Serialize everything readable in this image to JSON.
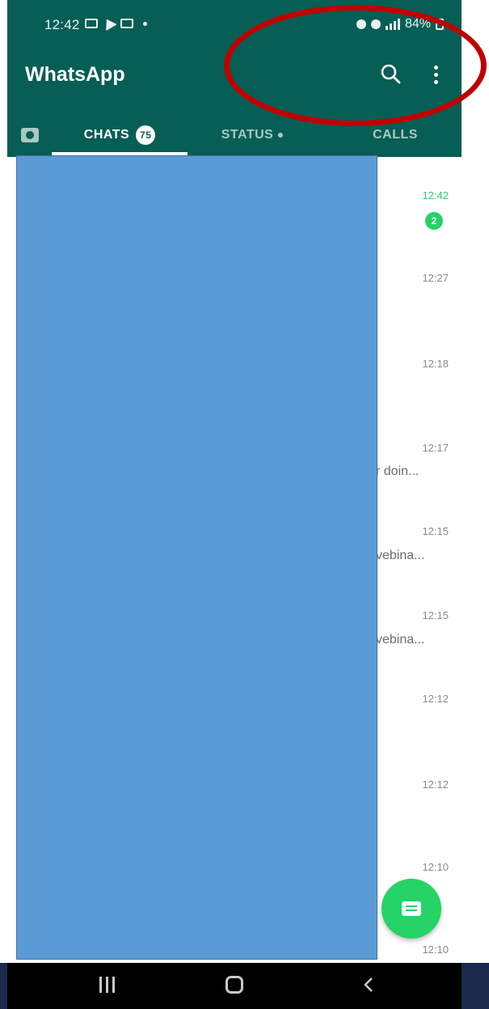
{
  "status_bar": {
    "time": "12:42",
    "battery": "84%"
  },
  "header": {
    "title": "WhatsApp",
    "icons": [
      "search-icon",
      "more-vert-icon"
    ]
  },
  "tabs": {
    "chats_label": "CHATS",
    "chats_count": "75",
    "status_label": "STATUS",
    "calls_label": "CALLS",
    "camera_icon": "camera-icon"
  },
  "chats": [
    {
      "time": "12:42",
      "unread": "2",
      "preview": ""
    },
    {
      "time": "12:27",
      "preview": ""
    },
    {
      "time": "12:18",
      "preview": ""
    },
    {
      "time": "12:17",
      "preview": "r doin..."
    },
    {
      "time": "12:15",
      "preview": "vebina..."
    },
    {
      "time": "12:15",
      "preview": "vebina..."
    },
    {
      "time": "12:12",
      "preview": ""
    },
    {
      "time": "12:12",
      "preview": ""
    },
    {
      "time": "12:10",
      "preview": ""
    },
    {
      "time": "12:10",
      "preview": ""
    }
  ],
  "colors": {
    "header": "#075e54",
    "accent": "#25d366",
    "redaction": "#5b9bd5",
    "annotation": "#c00000"
  },
  "fab": {
    "icon": "new-chat-icon"
  },
  "navbar": {
    "icons": [
      "recents-icon",
      "home-icon",
      "back-icon"
    ]
  }
}
